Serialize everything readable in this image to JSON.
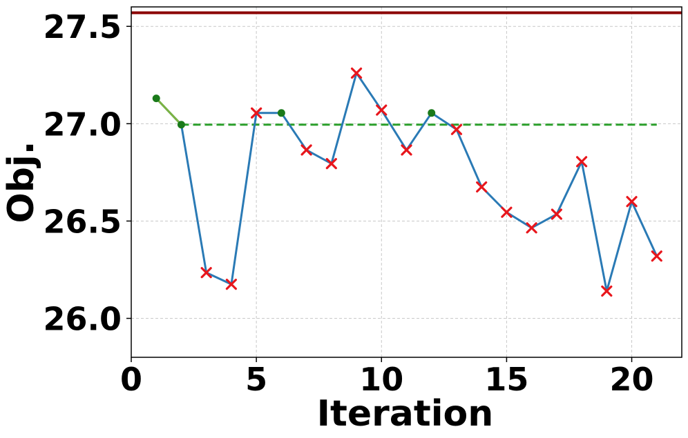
{
  "chart_data": {
    "type": "line",
    "xlabel": "Iteration",
    "ylabel": "Obj.",
    "xlim": [
      0,
      22
    ],
    "ylim": [
      25.8,
      27.6
    ],
    "x_ticks": [
      0,
      5,
      10,
      15,
      20
    ],
    "x_tick_labels": [
      "0",
      "5",
      "10",
      "15",
      "20"
    ],
    "y_ticks": [
      26.0,
      26.5,
      27.0,
      27.5
    ],
    "y_tick_labels": [
      "26.0",
      "26.5",
      "27.0",
      "27.5"
    ],
    "grid": true,
    "series": [
      {
        "x": [
          1,
          2,
          3,
          4,
          5,
          6,
          7,
          8,
          9,
          10,
          11,
          12,
          13,
          14,
          15,
          16,
          17,
          18,
          19,
          20,
          21
        ],
        "y": [
          27.13,
          26.995,
          26.235,
          26.175,
          27.055,
          27.055,
          26.865,
          26.795,
          27.26,
          27.07,
          26.865,
          27.055,
          26.97,
          26.675,
          26.545,
          26.465,
          26.535,
          26.805,
          26.14,
          26.6,
          26.32
        ],
        "markers": [
          "accepted",
          "accepted",
          "rejected",
          "rejected",
          "rejected",
          "accepted",
          "rejected",
          "rejected",
          "rejected",
          "rejected",
          "rejected",
          "accepted",
          "rejected",
          "rejected",
          "rejected",
          "rejected",
          "rejected",
          "rejected",
          "rejected",
          "rejected",
          "rejected"
        ],
        "color": "#2a7ab5"
      }
    ],
    "best_so_far_line": {
      "x": [
        1,
        2
      ],
      "y": [
        27.13,
        26.995
      ],
      "color": "#7cb342"
    },
    "best_level_line": {
      "y": 26.995,
      "x_start": 2,
      "x_end": 21,
      "color": "#2ca02c",
      "style": "dashed"
    },
    "reference_line": {
      "y": 27.57,
      "color": "#8b0000"
    },
    "accepted_marker_color": "#1a7a1a",
    "rejected_marker_color": "#e8161c"
  }
}
